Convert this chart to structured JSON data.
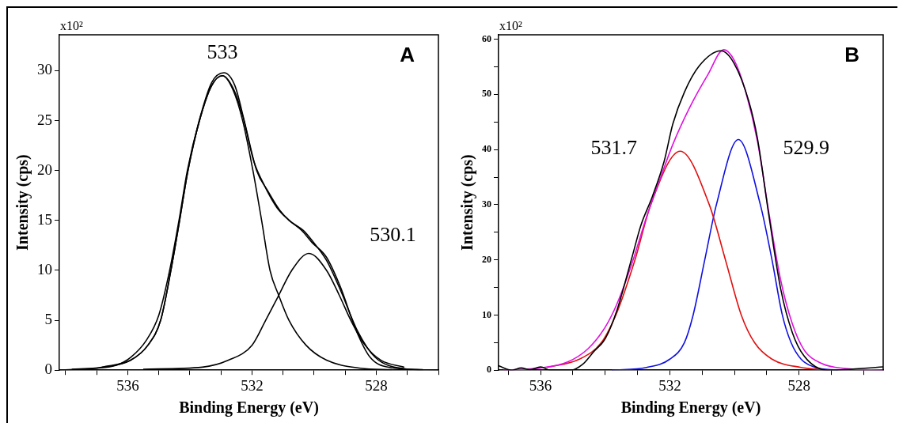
{
  "chart_data": [
    {
      "type": "line",
      "xlabel": "Binding Energy (eV)",
      "ylabel": "Intensity (cps)",
      "xlim": [
        538.2,
        526
      ],
      "ylim": [
        0,
        33.6
      ],
      "xticks": [
        {
          "value": 538,
          "label": null
        },
        {
          "value": 537,
          "label": null
        },
        536,
        {
          "value": 535,
          "label": null
        },
        {
          "value": 534,
          "label": null
        },
        {
          "value": 533,
          "label": null
        },
        532,
        {
          "value": 531,
          "label": null
        },
        {
          "value": 530,
          "label": null
        },
        {
          "value": 529,
          "label": null
        },
        528,
        {
          "value": 527,
          "label": null
        },
        {
          "value": 526,
          "label": null
        }
      ],
      "yticks": [
        0,
        5,
        10,
        15,
        20,
        25,
        30
      ],
      "grid": false,
      "legend": false,
      "marker": "none",
      "line_style": "solid",
      "annotations": [
        "x10²",
        "A",
        "533",
        "530.1"
      ],
      "series": [
        {
          "color": "#000000",
          "x": [
            537.8,
            537,
            536.37,
            535.9,
            535.4,
            535,
            534.65,
            534.35,
            534.08,
            533.7,
            533.3,
            532.9,
            532.55,
            532.25,
            531.85,
            531.5,
            531.1,
            530.8,
            530.35,
            530.07,
            529.6,
            529.15,
            528.6,
            528.04,
            527.1,
            526.5
          ],
          "values": [
            0.1,
            0.2,
            0.5,
            1.3,
            3,
            5.5,
            10,
            15,
            20,
            25,
            28.8,
            29.8,
            28.5,
            25,
            20,
            18,
            16,
            15,
            14,
            13,
            11,
            8,
            3.9,
            1.3,
            0.15,
            0.05
          ]
        },
        {
          "color": "#000000",
          "x": [
            538.2,
            536.8,
            535.9,
            535.35,
            534.94,
            534.61,
            534.33,
            534.06,
            533.69,
            533.3,
            532.95,
            532.6,
            532.3,
            531.95,
            531.6,
            531.2,
            530.8,
            530.4,
            530.07,
            529.6,
            529.15,
            528.65,
            528.2,
            527.6,
            526
          ],
          "values": [
            0,
            0.3,
            1,
            2.5,
            5,
            10,
            15,
            20,
            25,
            28.5,
            29.5,
            28.2,
            25.5,
            21,
            18.5,
            16.3,
            15,
            14,
            12.8,
            11.3,
            8.3,
            4,
            1.3,
            0.3,
            0
          ]
        },
        {
          "color": "#000000",
          "x": [
            536.83,
            535.91,
            535.35,
            534.94,
            534.61,
            534.33,
            534.06,
            533.69,
            533.3,
            532.95,
            532.6,
            532.3,
            531.97,
            531.69,
            531.42,
            531.14,
            530.81,
            530.26,
            529.6,
            528.5,
            527.5
          ],
          "values": [
            0.3,
            1,
            2.5,
            5,
            10,
            15,
            20,
            25,
            28.5,
            29.5,
            28,
            25,
            20,
            15,
            10,
            7.5,
            5,
            2.5,
            1,
            0.2,
            0.05
          ]
        },
        {
          "color": "#000000",
          "x": [
            535.5,
            533.6,
            532.76,
            532.0,
            531.56,
            531.14,
            530.72,
            530.17,
            529.6,
            529.19,
            528.82,
            528.36,
            527.85,
            527.1
          ],
          "values": [
            0.1,
            0.3,
            1,
            2.5,
            5,
            7.5,
            10,
            11.7,
            10,
            7.5,
            5,
            2.5,
            1,
            0.3
          ]
        }
      ]
    },
    {
      "type": "line",
      "xlabel": "Binding Energy (eV)",
      "ylabel": "Intensity (cps)",
      "xlim": [
        537.3,
        525.4
      ],
      "ylim": [
        0,
        60.8
      ],
      "xticks": [
        {
          "value": 537,
          "label": null
        },
        536,
        {
          "value": 535,
          "label": null
        },
        {
          "value": 534,
          "label": null
        },
        {
          "value": 533,
          "label": null
        },
        532,
        {
          "value": 531,
          "label": null
        },
        {
          "value": 530,
          "label": null
        },
        {
          "value": 529,
          "label": null
        },
        528,
        {
          "value": 527,
          "label": null
        },
        {
          "value": 526,
          "label": null
        }
      ],
      "yticks": [
        0,
        {
          "value": 5,
          "label": null
        },
        10,
        {
          "value": 15,
          "label": null
        },
        20,
        {
          "value": 25,
          "label": null
        },
        30,
        {
          "value": 35,
          "label": null
        },
        40,
        {
          "value": 45,
          "label": null
        },
        50,
        {
          "value": 55,
          "label": null
        },
        60
      ],
      "grid": false,
      "legend": false,
      "marker": "none",
      "line_style": "solid",
      "annotations": [
        "x10²",
        "B",
        "531.7",
        "529.9"
      ],
      "series": [
        {
          "color": "#000000",
          "x": [
            537.3,
            536.88,
            536.6,
            536.33,
            536,
            535.7,
            535.07,
            534.71,
            534.35,
            533.99,
            533.63,
            533.17,
            532.9,
            532.54,
            532.18,
            531.91,
            531.55,
            531.1,
            530.42,
            530.01,
            529.56,
            529.29,
            528.93,
            528.57,
            528.21,
            527.85,
            527.12,
            525.4
          ],
          "values": [
            0.8,
            0,
            0.4,
            0.1,
            0.6,
            0,
            0,
            1,
            3.4,
            5.8,
            11,
            20.5,
            26.2,
            31.5,
            37.8,
            44.6,
            50.4,
            55.1,
            57.9,
            55.6,
            48.8,
            42,
            27.8,
            14.7,
            6.8,
            2.6,
            0,
            0.6
          ]
        },
        {
          "color": "#e010e0",
          "x": [
            537.15,
            536,
            535.16,
            534.53,
            533.99,
            533.63,
            533.17,
            532.72,
            532.27,
            531.91,
            531.37,
            530.83,
            530.33,
            530.01,
            529.65,
            529.29,
            528.93,
            528.57,
            528.21,
            527.85,
            527.3,
            526.58,
            525.4
          ],
          "values": [
            0,
            0.4,
            1.5,
            3.9,
            7.9,
            12.1,
            19.4,
            27.8,
            35.2,
            40.9,
            47.8,
            53.5,
            58.1,
            56.2,
            50.4,
            41.5,
            28.3,
            16.3,
            8.4,
            3.7,
            1.2,
            0.3,
            0
          ]
        },
        {
          "color": "#e01010",
          "x": [
            535.8,
            534.8,
            534.12,
            533.67,
            533.08,
            532.59,
            531.68,
            530.78,
            530.28,
            529.79,
            529.38,
            528.84,
            527.94,
            527.1
          ],
          "values": [
            0.5,
            2,
            5,
            10,
            20,
            30,
            39.7,
            30,
            20,
            10,
            5,
            2,
            0.5,
            0
          ]
        },
        {
          "color": "#1010e0",
          "x": [
            533.8,
            532.72,
            532.0,
            531.55,
            531.28,
            530.92,
            530.56,
            529.88,
            529.2,
            528.84,
            528.52,
            528.25,
            527.94,
            527.5,
            526.8
          ],
          "values": [
            0,
            0.5,
            2,
            5,
            10,
            20,
            30,
            41.8,
            30,
            20,
            10,
            5,
            2,
            0.5,
            0
          ]
        }
      ]
    }
  ]
}
